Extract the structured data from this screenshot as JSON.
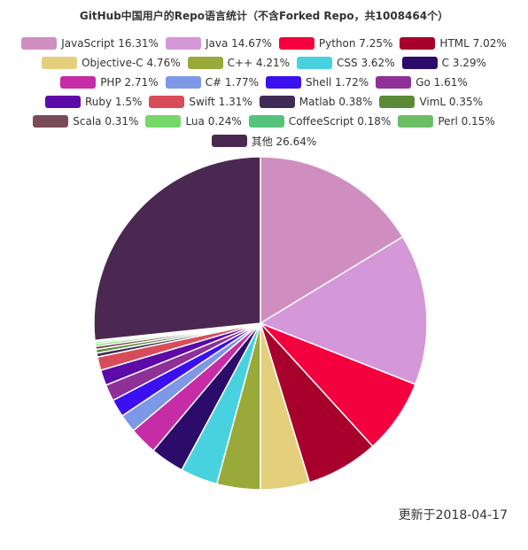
{
  "title": "GitHub中国用户的Repo语言统计（不含Forked Repo，共1008464个）",
  "footnote": "更新于2018-04-17",
  "chart_data": {
    "type": "pie",
    "title": "GitHub中国用户的Repo语言统计（不含Forked Repo，共1008464个）",
    "legend_placement": "top",
    "slices": [
      {
        "name": "JavaScript",
        "value": 16.31,
        "label": "JavaScript 16.31%",
        "color": "#d08ec0"
      },
      {
        "name": "Java",
        "value": 14.67,
        "label": "Java 14.67%",
        "color": "#d497d8"
      },
      {
        "name": "Python",
        "value": 7.25,
        "label": "Python 7.25%",
        "color": "#f5003e"
      },
      {
        "name": "HTML",
        "value": 7.02,
        "label": "HTML 7.02%",
        "color": "#a8002d"
      },
      {
        "name": "Objective-C",
        "value": 4.76,
        "label": "Objective-C 4.76%",
        "color": "#e4d07c"
      },
      {
        "name": "C++",
        "value": 4.21,
        "label": "C++ 4.21%",
        "color": "#9aaa3a"
      },
      {
        "name": "CSS",
        "value": 3.62,
        "label": "CSS 3.62%",
        "color": "#48d2e0"
      },
      {
        "name": "C",
        "value": 3.29,
        "label": "C 3.29%",
        "color": "#2b0c6a"
      },
      {
        "name": "PHP",
        "value": 2.71,
        "label": "PHP 2.71%",
        "color": "#c62ca6"
      },
      {
        "name": "C#",
        "value": 1.77,
        "label": "C# 1.77%",
        "color": "#7c98e6"
      },
      {
        "name": "Shell",
        "value": 1.72,
        "label": "Shell 1.72%",
        "color": "#3b10f0"
      },
      {
        "name": "Go",
        "value": 1.61,
        "label": "Go 1.61%",
        "color": "#8e3098"
      },
      {
        "name": "Ruby",
        "value": 1.5,
        "label": "Ruby 1.5%",
        "color": "#5c0aa8"
      },
      {
        "name": "Swift",
        "value": 1.31,
        "label": "Swift 1.31%",
        "color": "#d84c5a"
      },
      {
        "name": "Matlab",
        "value": 0.38,
        "label": "Matlab 0.38%",
        "color": "#3e2c56"
      },
      {
        "name": "VimL",
        "value": 0.35,
        "label": "VimL 0.35%",
        "color": "#5a8a36"
      },
      {
        "name": "Scala",
        "value": 0.31,
        "label": "Scala 0.31%",
        "color": "#7a4c58"
      },
      {
        "name": "Lua",
        "value": 0.24,
        "label": "Lua 0.24%",
        "color": "#76d86a"
      },
      {
        "name": "CoffeeScript",
        "value": 0.18,
        "label": "CoffeeScript 0.18%",
        "color": "#54c47c"
      },
      {
        "name": "Perl",
        "value": 0.15,
        "label": "Perl 0.15%",
        "color": "#6cbe64"
      },
      {
        "name": "其他",
        "value": 26.64,
        "label": "其他 26.64%",
        "color": "#4b2851"
      }
    ],
    "legend_rows": [
      [
        0,
        1,
        2,
        3
      ],
      [
        4,
        5,
        6,
        7
      ],
      [
        8,
        9,
        10,
        11
      ],
      [
        12,
        13,
        14,
        15
      ],
      [
        16,
        17,
        18,
        19
      ],
      [
        20
      ]
    ]
  }
}
